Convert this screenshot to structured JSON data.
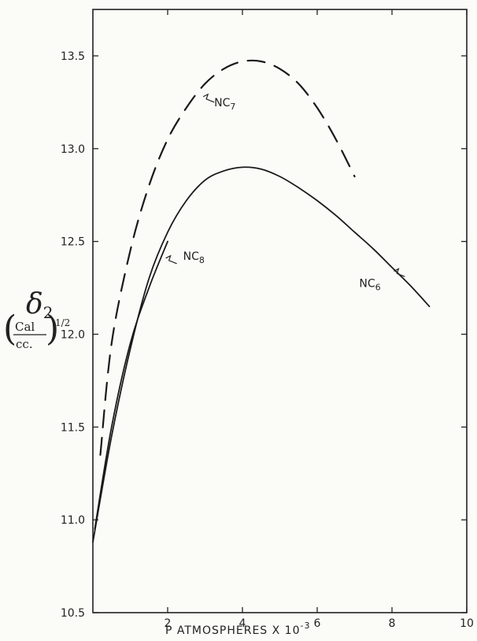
{
  "chart_data": {
    "type": "line",
    "title": "",
    "xlabel": "P ATMOSPHERES X 10",
    "xlabel_exponent": "-3",
    "ylabel_symbol": "δ",
    "ylabel_subscript": "2",
    "ylabel_unit_numerator": "Cal",
    "ylabel_unit_denominator": "cc.",
    "ylabel_unit_exponent": "1/2",
    "xlim": [
      0,
      10
    ],
    "ylim": [
      10.5,
      13.75
    ],
    "x_ticks": [
      2,
      4,
      6,
      8,
      10
    ],
    "x_tick_labels": [
      "2",
      "4",
      "6",
      "8",
      "10"
    ],
    "y_ticks": [
      10.5,
      11.0,
      11.5,
      12.0,
      12.5,
      13.0,
      13.5
    ],
    "y_tick_labels": [
      "10.5",
      "11.0",
      "11.5",
      "12.0",
      "12.5",
      "13.0",
      "13.5"
    ],
    "grid": false,
    "series": [
      {
        "name": "NC7",
        "label_main": "NC",
        "label_sub": "7",
        "style": "dashed",
        "x": [
          0.2,
          0.5,
          1.0,
          1.5,
          2.0,
          2.5,
          3.0,
          3.5,
          4.0,
          4.5,
          5.0,
          5.5,
          6.0,
          6.5,
          7.0
        ],
        "y": [
          11.35,
          11.95,
          12.45,
          12.8,
          13.05,
          13.22,
          13.35,
          13.43,
          13.47,
          13.47,
          13.43,
          13.35,
          13.22,
          13.05,
          12.85
        ],
        "label_at": [
          2.95,
          13.28
        ]
      },
      {
        "name": "NC8",
        "label_main": "NC",
        "label_sub": "8",
        "style": "solid",
        "x": [
          0.05,
          0.5,
          1.0,
          1.5,
          2.0
        ],
        "y": [
          10.95,
          11.5,
          11.95,
          12.25,
          12.5
        ],
        "label_at": [
          1.95,
          12.41
        ]
      },
      {
        "name": "NC6",
        "label_main": "NC",
        "label_sub": "6",
        "style": "solid",
        "x": [
          0.0,
          0.5,
          1.0,
          1.5,
          2.0,
          2.5,
          3.0,
          3.5,
          4.0,
          4.5,
          5.0,
          5.5,
          6.0,
          6.5,
          7.0,
          7.5,
          8.0,
          8.5,
          9.0
        ],
        "y": [
          10.88,
          11.45,
          11.92,
          12.3,
          12.55,
          12.72,
          12.83,
          12.88,
          12.9,
          12.89,
          12.85,
          12.79,
          12.72,
          12.64,
          12.55,
          12.46,
          12.36,
          12.26,
          12.15
        ],
        "label_at": [
          8.05,
          12.34
        ]
      }
    ]
  }
}
